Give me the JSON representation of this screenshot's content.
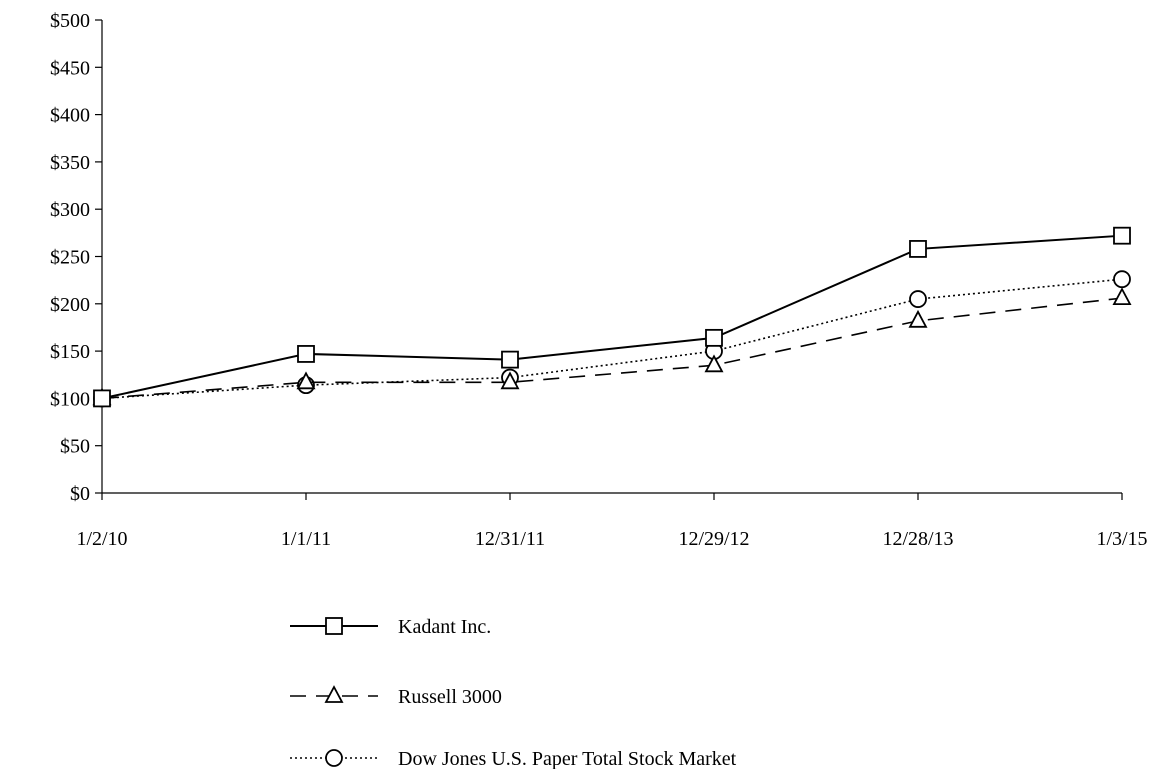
{
  "chart_data": {
    "type": "line",
    "title": "",
    "xlabel": "",
    "ylabel": "",
    "categories": [
      "1/2/10",
      "1/1/11",
      "12/31/11",
      "12/29/12",
      "12/28/13",
      "1/3/15"
    ],
    "ylim": [
      0,
      500
    ],
    "y_ticks": [
      0,
      50,
      100,
      150,
      200,
      250,
      300,
      350,
      400,
      450,
      500
    ],
    "y_tick_labels": [
      "$0",
      "$50",
      "$100",
      "$150",
      "$200",
      "$250",
      "$300",
      "$350",
      "$400",
      "$450",
      "$500"
    ],
    "grid": false,
    "legend_position": "bottom",
    "series": [
      {
        "name": "Kadant Inc.",
        "values": [
          100,
          147,
          141,
          164,
          258,
          272
        ],
        "line_style": "solid",
        "marker": "square",
        "color": "#000000"
      },
      {
        "name": "Russell 3000",
        "values": [
          100,
          117,
          117,
          135,
          182,
          206
        ],
        "line_style": "dashed",
        "marker": "triangle",
        "color": "#000000"
      },
      {
        "name": "Dow Jones U.S. Paper Total Stock Market",
        "values": [
          100,
          114,
          122,
          150,
          205,
          226
        ],
        "line_style": "dotted",
        "marker": "circle",
        "color": "#000000"
      }
    ]
  }
}
